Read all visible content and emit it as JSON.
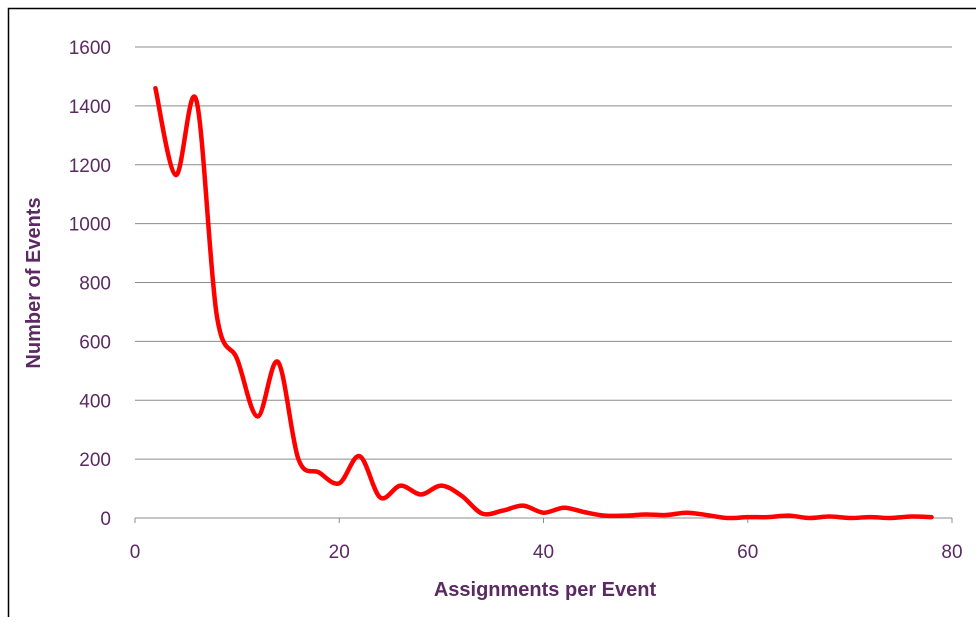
{
  "chart_data": {
    "type": "line",
    "x_label": "Assignments per Event",
    "y_label": "Number of  Events",
    "xlim": [
      0,
      80
    ],
    "xticks": [
      0,
      20,
      40,
      60,
      80
    ],
    "ylim": [
      0,
      1600
    ],
    "yticks": [
      0,
      200,
      400,
      600,
      800,
      1000,
      1200,
      1400,
      1600
    ],
    "grid": true,
    "smooth": true,
    "series": [
      {
        "color": "#ff0000",
        "x": [
          2,
          4,
          6,
          8,
          10,
          12,
          14,
          16,
          18,
          20,
          22,
          24,
          26,
          28,
          30,
          32,
          34,
          36,
          38,
          40,
          42,
          44,
          46,
          48,
          50,
          52,
          54,
          56,
          58,
          60,
          62,
          64,
          66,
          68,
          70,
          72,
          74,
          76,
          78
        ],
        "values": [
          1460,
          1165,
          1420,
          690,
          540,
          345,
          530,
          200,
          155,
          118,
          210,
          70,
          110,
          80,
          110,
          75,
          15,
          25,
          42,
          18,
          35,
          20,
          8,
          8,
          12,
          10,
          18,
          10,
          0,
          3,
          3,
          8,
          0,
          5,
          0,
          3,
          0,
          5,
          3
        ]
      }
    ]
  }
}
